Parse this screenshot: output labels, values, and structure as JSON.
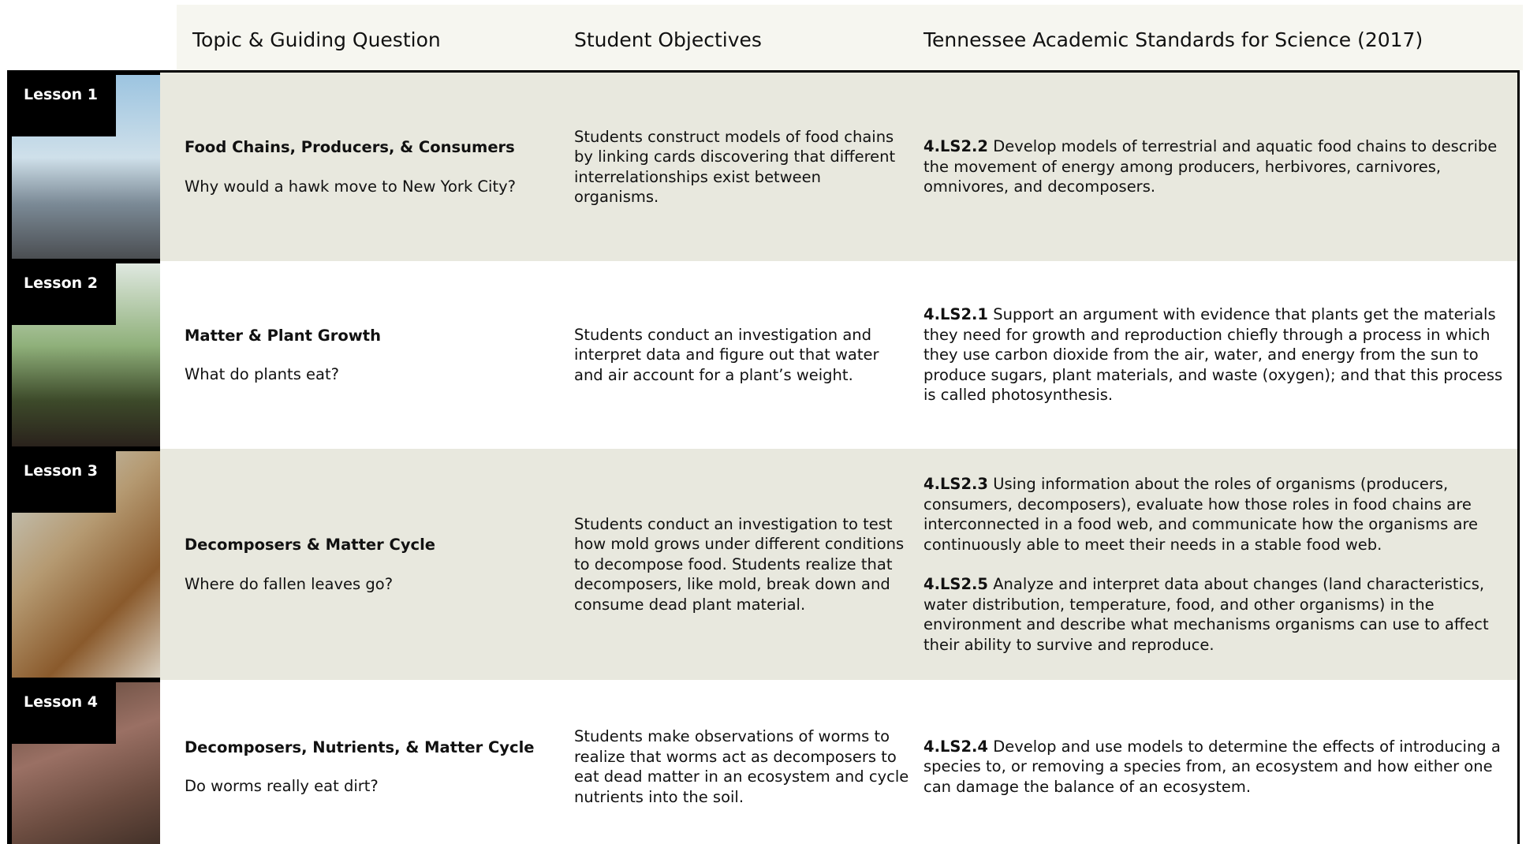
{
  "header": {
    "columns": [
      "Topic & Guiding Question",
      "Student Objectives",
      "Tennessee Academic Standards for Science (2017)"
    ]
  },
  "lessons": [
    {
      "label": "Lesson 1",
      "topic": "Food Chains, Producers, & Consumers",
      "question": "Why would a hawk move to New York City?",
      "objective": "Students construct models of food chains by linking cards discovering that different interrelationships exist between organisms.",
      "standards": [
        {
          "code": "4.LS2.2",
          "text": "Develop models of terrestrial and aquatic food chains to describe the movement of energy among producers, herbivores, carnivores, omnivores, and decomposers."
        }
      ]
    },
    {
      "label": "Lesson 2",
      "topic": "Matter & Plant Growth",
      "question": "What do plants eat?",
      "objective": "Students conduct an investigation and interpret data and figure out that water and air account for a plant’s weight.",
      "standards": [
        {
          "code": "4.LS2.1",
          "text": "Support an argument with evidence that plants get the materials they need for growth and reproduction chiefly through a process in which they use carbon dioxide from the air, water, and energy from the sun to produce sugars, plant materials, and waste (oxygen); and that this process is called photosynthesis."
        }
      ]
    },
    {
      "label": "Lesson 3",
      "topic": "Decomposers & Matter Cycle",
      "question": "Where do fallen leaves go?",
      "objective": "Students conduct an investigation to test how mold grows under different conditions to decompose food. Students realize that decomposers, like mold, break down and consume dead plant material.",
      "standards": [
        {
          "code": "4.LS2.3",
          "text": "Using information about the roles of organisms (producers, consumers, decomposers), evaluate how those roles in food chains are interconnected in a food web, and communicate how the organisms are continuously able to meet their needs in a stable food web."
        },
        {
          "code": "4.LS2.5",
          "text": "Analyze and interpret data about changes (land characteristics, water distribution, temperature, food, and other organisms) in the environment and describe what mechanisms organisms can use to affect their ability to survive and reproduce."
        }
      ]
    },
    {
      "label": "Lesson 4",
      "topic": "Decomposers, Nutrients, & Matter Cycle",
      "question": "Do worms really eat dirt?",
      "objective": "Students make observations of worms to realize that worms act as decomposers to eat dead matter in an ecosystem and cycle nutrients into the soil.",
      "standards": [
        {
          "code": "4.LS2.4",
          "text": "Develop and use models to determine the effects of introducing a species to, or removing a species from, an ecosystem and how either one can damage the balance of an ecosystem."
        }
      ]
    }
  ]
}
